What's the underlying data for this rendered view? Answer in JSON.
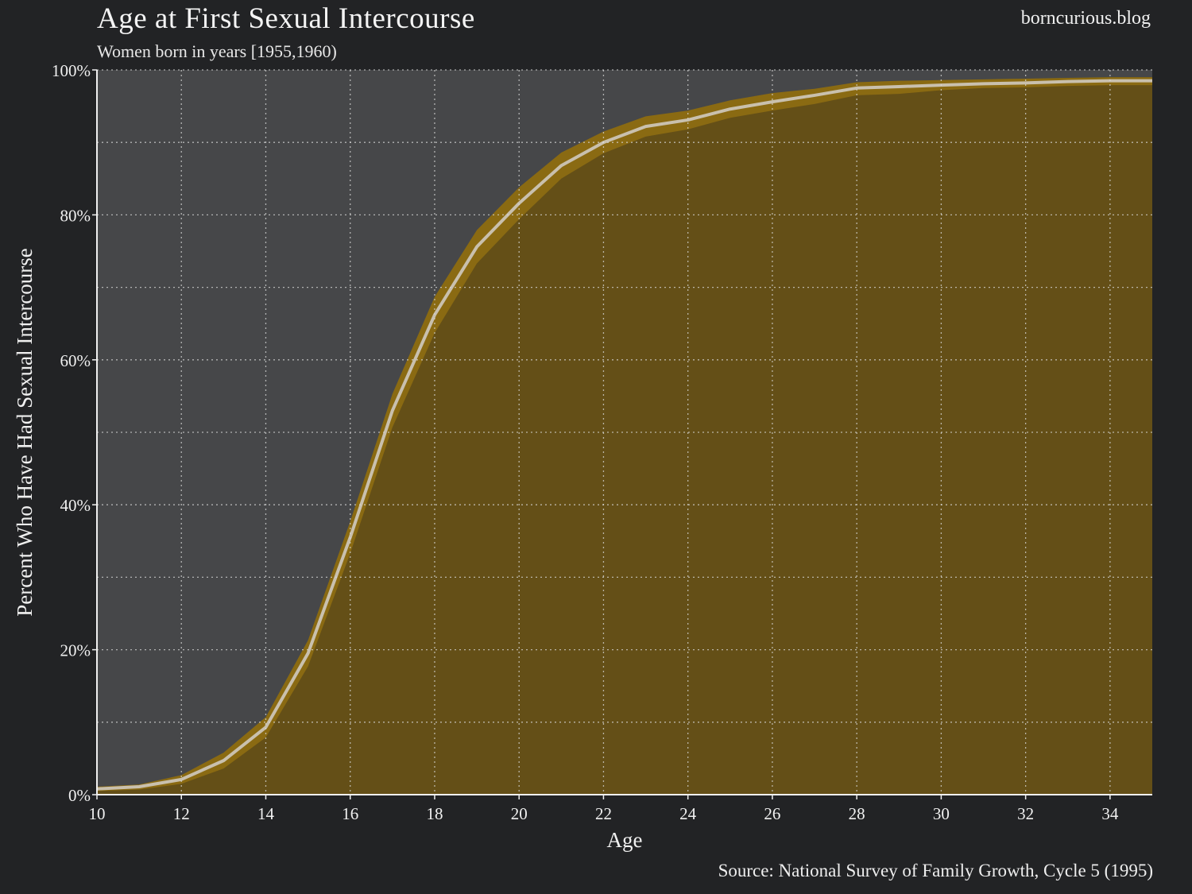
{
  "header": {
    "title": "Age at First Sexual Intercourse",
    "subtitle": "Women born in years [1955,1960)",
    "brand": "borncurious.blog"
  },
  "footer": {
    "source": "Source: National Survey of Family Growth, Cycle 5 (1995)"
  },
  "colors": {
    "background": "#222325",
    "plot_background": "#464749",
    "fill": "#644f17",
    "band": "#8a6a12",
    "line": "#c9c0ad",
    "grid": "#d8d8d8"
  },
  "chart_data": {
    "type": "area",
    "title": "Age at First Sexual Intercourse",
    "subtitle": "Women born in years [1955,1960)",
    "xlabel": "Age",
    "ylabel": "Percent Who Have Had Sexual Intercourse",
    "xlim": [
      10,
      35
    ],
    "ylim": [
      0,
      100
    ],
    "x_ticks": [
      10,
      12,
      14,
      16,
      18,
      20,
      22,
      24,
      26,
      28,
      30,
      32,
      34
    ],
    "y_ticks": [
      0,
      20,
      40,
      60,
      80,
      100
    ],
    "y_tick_labels": [
      "0%",
      "20%",
      "40%",
      "60%",
      "80%",
      "100%"
    ],
    "grid": true,
    "series": [
      {
        "x": [
          10,
          11,
          12,
          13,
          14,
          15,
          16,
          17,
          18,
          19,
          20,
          21,
          22,
          23,
          24,
          25,
          26,
          27,
          28,
          29,
          30,
          31,
          32,
          33,
          34,
          35
        ],
        "values": [
          0.8,
          1.1,
          2.1,
          4.7,
          9.3,
          19.5,
          35.5,
          53.0,
          66.2,
          75.6,
          81.6,
          86.8,
          90.0,
          92.2,
          93.1,
          94.6,
          95.6,
          96.5,
          97.5,
          97.7,
          97.9,
          98.1,
          98.2,
          98.4,
          98.5,
          98.5
        ],
        "lower": [
          0.5,
          0.7,
          1.5,
          3.6,
          7.9,
          17.7,
          33.3,
          50.7,
          63.7,
          73.3,
          79.4,
          85.0,
          88.5,
          90.8,
          91.8,
          93.4,
          94.4,
          95.3,
          96.5,
          96.7,
          97.2,
          97.5,
          97.6,
          97.8,
          97.9,
          97.9
        ],
        "upper": [
          1.1,
          1.4,
          2.7,
          5.8,
          10.7,
          21.3,
          37.7,
          55.3,
          68.7,
          77.9,
          83.8,
          88.6,
          91.5,
          93.6,
          94.4,
          95.8,
          96.8,
          97.4,
          98.3,
          98.5,
          98.6,
          98.7,
          98.8,
          98.9,
          99.0,
          99.0
        ]
      }
    ]
  }
}
